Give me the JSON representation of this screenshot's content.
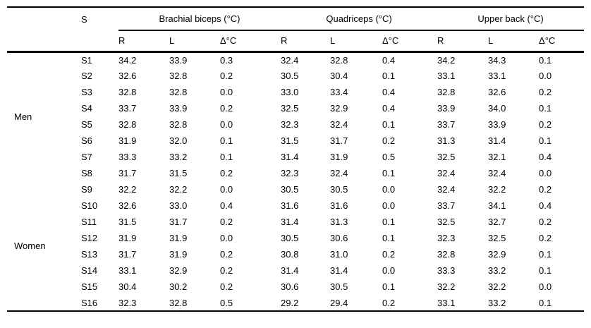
{
  "chart_data": {
    "type": "table",
    "s_header": "S",
    "col_groups": [
      "Brachial biceps (°C)",
      "Quadriceps (°C)",
      "Upper back (°C)"
    ],
    "sub_headers": [
      "R",
      "L",
      "Δ°C",
      "R",
      "L",
      "Δ°C",
      "R",
      "L",
      "Δ°C"
    ],
    "row_groups": [
      {
        "label": "Men",
        "rows": [
          {
            "s": "S1",
            "values": [
              "34.2",
              "33.9",
              "0.3",
              "32.4",
              "32.8",
              "0.4",
              "34.2",
              "34.3",
              "0.1"
            ]
          },
          {
            "s": "S2",
            "values": [
              "32.6",
              "32.8",
              "0.2",
              "30.5",
              "30.4",
              "0.1",
              "33.1",
              "33.1",
              "0.0"
            ]
          },
          {
            "s": "S3",
            "values": [
              "32.8",
              "32.8",
              "0.0",
              "33.0",
              "33.4",
              "0.4",
              "32.8",
              "32.6",
              "0.2"
            ]
          },
          {
            "s": "S4",
            "values": [
              "33.7",
              "33.9",
              "0.2",
              "32.5",
              "32.9",
              "0.4",
              "33.9",
              "34.0",
              "0.1"
            ]
          },
          {
            "s": "S5",
            "values": [
              "32.8",
              "32.8",
              "0.0",
              "32.3",
              "32.4",
              "0.1",
              "33.7",
              "33.9",
              "0.2"
            ]
          },
          {
            "s": "S6",
            "values": [
              "31.9",
              "32.0",
              "0.1",
              "31.5",
              "31.7",
              "0.2",
              "31.3",
              "31.4",
              "0.1"
            ]
          },
          {
            "s": "S7",
            "values": [
              "33.3",
              "33.2",
              "0.1",
              "31.4",
              "31.9",
              "0.5",
              "32.5",
              "32.1",
              "0.4"
            ]
          },
          {
            "s": "S8",
            "values": [
              "31.7",
              "31.5",
              "0.2",
              "32.3",
              "32.4",
              "0.1",
              "32.4",
              "32.4",
              "0.0"
            ]
          }
        ]
      },
      {
        "label": "Women",
        "rows": [
          {
            "s": "S9",
            "values": [
              "32.2",
              "32.2",
              "0.0",
              "30.5",
              "30.5",
              "0.0",
              "32.4",
              "32.2",
              "0.2"
            ]
          },
          {
            "s": "S10",
            "values": [
              "32.6",
              "33.0",
              "0.4",
              "31.6",
              "31.6",
              "0.0",
              "33.7",
              "34.1",
              "0.4"
            ]
          },
          {
            "s": "S11",
            "values": [
              "31.5",
              "31.7",
              "0.2",
              "31.4",
              "31.3",
              "0.1",
              "32.5",
              "32.7",
              "0.2"
            ]
          },
          {
            "s": "S12",
            "values": [
              "31.9",
              "31.9",
              "0.0",
              "30.5",
              "30.6",
              "0.1",
              "32.3",
              "32.5",
              "0.2"
            ]
          },
          {
            "s": "S13",
            "values": [
              "31.7",
              "31.9",
              "0.2",
              "30.8",
              "31.0",
              "0.2",
              "32.8",
              "32.9",
              "0.1"
            ]
          },
          {
            "s": "S14",
            "values": [
              "33.1",
              "32.9",
              "0.2",
              "31.4",
              "31.4",
              "0.0",
              "33.3",
              "33.2",
              "0.1"
            ]
          },
          {
            "s": "S15",
            "values": [
              "30.4",
              "30.2",
              "0.2",
              "30.6",
              "30.5",
              "0.1",
              "32.2",
              "32.2",
              "0.0"
            ]
          },
          {
            "s": "S16",
            "values": [
              "32.3",
              "32.8",
              "0.5",
              "29.2",
              "29.4",
              "0.2",
              "33.1",
              "33.2",
              "0.1"
            ]
          }
        ]
      }
    ]
  }
}
